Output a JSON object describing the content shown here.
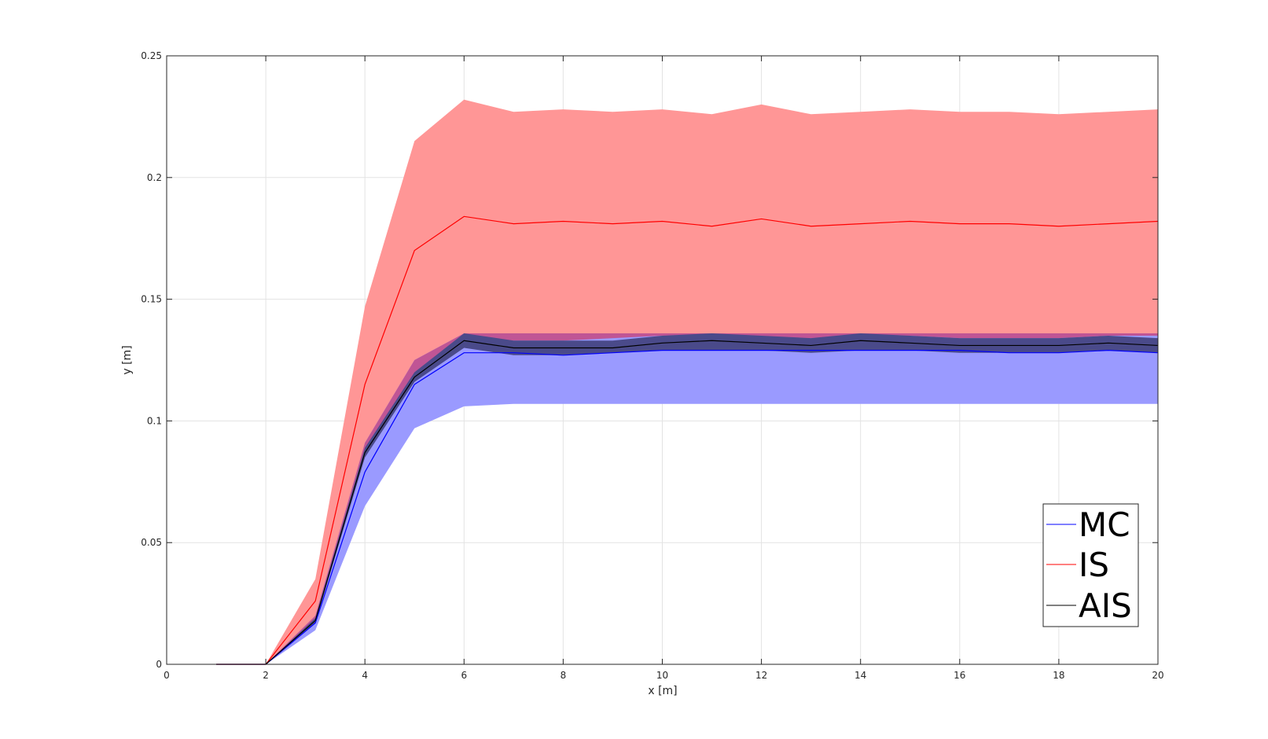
{
  "chart_data": {
    "type": "line",
    "xlabel": "x [m]",
    "ylabel": "y [m]",
    "xlim": [
      0,
      20
    ],
    "ylim": [
      0,
      0.25
    ],
    "xticks": [
      "0",
      "2",
      "4",
      "6",
      "8",
      "10",
      "12",
      "14",
      "16",
      "18",
      "20"
    ],
    "yticks": [
      "0",
      "0.05",
      "0.1",
      "0.15",
      "0.2",
      "0.25"
    ],
    "grid": true,
    "legend_position": "bottom-right",
    "x": [
      1,
      2,
      3,
      4,
      5,
      6,
      7,
      8,
      9,
      10,
      11,
      12,
      13,
      14,
      15,
      16,
      17,
      18,
      19,
      20
    ],
    "series": [
      {
        "name": "MC",
        "color": "#0000ff",
        "band_color": "#3333ff",
        "values": [
          0,
          0,
          0.017,
          0.079,
          0.115,
          0.128,
          0.128,
          0.127,
          0.128,
          0.129,
          0.129,
          0.129,
          0.129,
          0.129,
          0.129,
          0.129,
          0.128,
          0.128,
          0.129,
          0.128
        ],
        "lower": [
          0,
          0,
          0.014,
          0.065,
          0.097,
          0.106,
          0.107,
          0.107,
          0.107,
          0.107,
          0.107,
          0.107,
          0.107,
          0.107,
          0.107,
          0.107,
          0.107,
          0.107,
          0.107,
          0.107
        ],
        "upper": [
          0,
          0,
          0.02,
          0.091,
          0.125,
          0.136,
          0.136,
          0.136,
          0.136,
          0.136,
          0.136,
          0.136,
          0.136,
          0.136,
          0.136,
          0.136,
          0.136,
          0.136,
          0.136,
          0.136
        ]
      },
      {
        "name": "IS",
        "color": "#ff0000",
        "band_color": "#ff3333",
        "values": [
          0,
          0,
          0.026,
          0.115,
          0.17,
          0.184,
          0.181,
          0.182,
          0.181,
          0.182,
          0.18,
          0.183,
          0.18,
          0.181,
          0.182,
          0.181,
          0.181,
          0.18,
          0.181,
          0.182
        ],
        "lower": [
          0,
          0,
          0.018,
          0.085,
          0.118,
          0.134,
          0.133,
          0.133,
          0.134,
          0.135,
          0.135,
          0.134,
          0.134,
          0.135,
          0.135,
          0.134,
          0.134,
          0.134,
          0.135,
          0.135
        ],
        "upper": [
          0,
          0,
          0.035,
          0.147,
          0.215,
          0.232,
          0.227,
          0.228,
          0.227,
          0.228,
          0.226,
          0.23,
          0.226,
          0.227,
          0.228,
          0.227,
          0.227,
          0.226,
          0.227,
          0.228
        ]
      },
      {
        "name": "AIS",
        "color": "#000000",
        "band_color": "#1a1a40",
        "values": [
          0,
          0,
          0.018,
          0.087,
          0.118,
          0.133,
          0.13,
          0.13,
          0.13,
          0.132,
          0.133,
          0.132,
          0.131,
          0.133,
          0.132,
          0.131,
          0.131,
          0.131,
          0.132,
          0.131
        ],
        "lower": [
          0,
          0,
          0.017,
          0.085,
          0.116,
          0.13,
          0.127,
          0.127,
          0.128,
          0.129,
          0.129,
          0.129,
          0.128,
          0.129,
          0.129,
          0.128,
          0.128,
          0.128,
          0.129,
          0.128
        ],
        "upper": [
          0,
          0,
          0.019,
          0.089,
          0.12,
          0.136,
          0.133,
          0.133,
          0.133,
          0.135,
          0.136,
          0.135,
          0.134,
          0.136,
          0.135,
          0.134,
          0.134,
          0.134,
          0.135,
          0.134
        ]
      }
    ],
    "fill_colors": {
      "outer_red": "#ff9696",
      "overlap": "#c05595",
      "outer_blue": "#9a9aff",
      "dark_band": "#4a4a8a"
    }
  }
}
